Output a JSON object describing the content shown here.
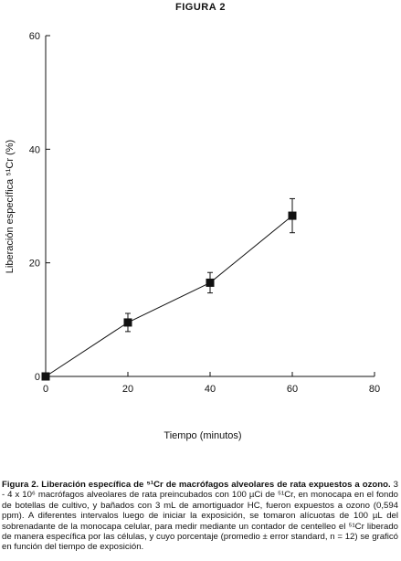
{
  "figure_label": "FIGURA 2",
  "chart_data": {
    "type": "scatter",
    "title": "",
    "xlabel": "Tiempo (minutos)",
    "ylabel": "Liberación específica ⁵¹Cr (%)",
    "xlim": [
      0,
      80
    ],
    "ylim": [
      0,
      60
    ],
    "x_ticks": [
      0,
      20,
      40,
      60,
      80
    ],
    "y_ticks": [
      0,
      20,
      40,
      60
    ],
    "grid": false,
    "legend": "none",
    "connected": true,
    "marker": "square",
    "series": [
      {
        "x": [
          0,
          20,
          40,
          60
        ],
        "y": [
          0,
          9.5,
          16.5,
          28.3
        ],
        "error": [
          0,
          1.6,
          1.8,
          3.0
        ]
      }
    ]
  },
  "caption": {
    "title": "Figura 2. Liberación específica de ⁵¹Cr de macrófagos alveolares de rata expuestos a ozono.",
    "body": " 3 - 4 x 10⁶ macrófagos alveolares de rata preincubados con 100 µCi de ⁵¹Cr, en monocapa en el fondo de botellas de cultivo, y bañados con 3 mL de amortiguador HC, fueron expuestos a ozono (0,594 ppm). A diferentes intervalos luego de iniciar la exposición, se tomaron alícuotas de 100 µL del sobrenadante de la monocapa celular, para medir mediante un contador de centelleo el ⁵¹Cr liberado de manera específica por las células, y cuyo porcentaje (promedio ± error standard, n = 12) se graficó en función del tiempo de exposición."
  }
}
